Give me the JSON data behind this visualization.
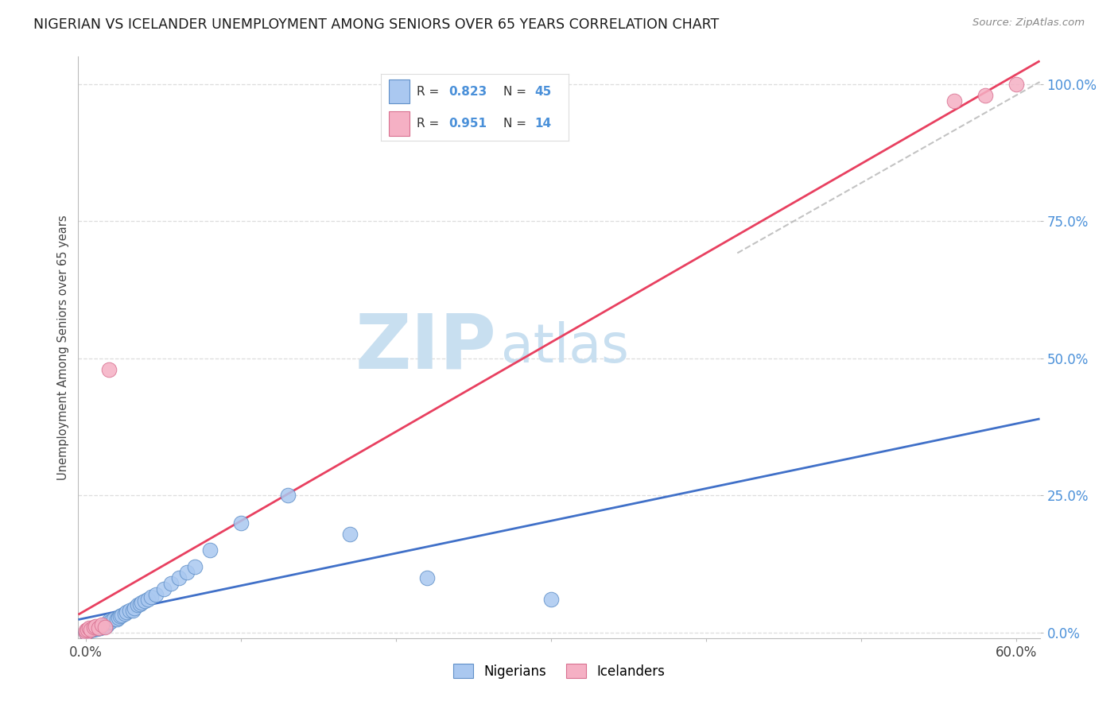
{
  "title": "NIGERIAN VS ICELANDER UNEMPLOYMENT AMONG SENIORS OVER 65 YEARS CORRELATION CHART",
  "source": "Source: ZipAtlas.com",
  "ylabel": "Unemployment Among Seniors over 65 years",
  "xlim": [
    -0.005,
    0.615
  ],
  "ylim": [
    -0.01,
    1.05
  ],
  "xtick_positions": [
    0.0,
    0.1,
    0.2,
    0.3,
    0.4,
    0.5,
    0.6
  ],
  "xtick_labels": [
    "0.0%",
    "",
    "",
    "",
    "",
    "",
    "60.0%"
  ],
  "ytick_positions": [
    0.0,
    0.25,
    0.5,
    0.75,
    1.0
  ],
  "ytick_labels": [
    "0.0%",
    "25.0%",
    "50.0%",
    "75.0%",
    "100.0%"
  ],
  "nigerian_R": 0.823,
  "nigerian_N": 45,
  "icelander_R": 0.951,
  "icelander_N": 14,
  "nigerian_color": "#aac8f0",
  "nigerian_edge": "#6090c8",
  "icelander_color": "#f5b0c4",
  "icelander_edge": "#d87090",
  "trend_nigerian_color": "#4070c8",
  "trend_icelander_color": "#e84060",
  "watermark_zip_color": "#c8dff0",
  "watermark_atlas_color": "#c8dff0",
  "background_color": "#ffffff",
  "nigerian_x": [
    0.0,
    0.0,
    0.001,
    0.002,
    0.003,
    0.005,
    0.006,
    0.007,
    0.008,
    0.009,
    0.01,
    0.011,
    0.012,
    0.013,
    0.015,
    0.015,
    0.016,
    0.018,
    0.02,
    0.021,
    0.022,
    0.023,
    0.025,
    0.026,
    0.028,
    0.03,
    0.031,
    0.033,
    0.035,
    0.036,
    0.038,
    0.04,
    0.042,
    0.045,
    0.05,
    0.055,
    0.06,
    0.065,
    0.07,
    0.08,
    0.1,
    0.13,
    0.17,
    0.22,
    0.3
  ],
  "nigerian_y": [
    0.0,
    0.002,
    0.003,
    0.005,
    0.004,
    0.006,
    0.008,
    0.007,
    0.009,
    0.008,
    0.01,
    0.012,
    0.015,
    0.013,
    0.018,
    0.022,
    0.02,
    0.025,
    0.025,
    0.028,
    0.03,
    0.032,
    0.035,
    0.038,
    0.04,
    0.04,
    0.045,
    0.05,
    0.052,
    0.055,
    0.058,
    0.06,
    0.065,
    0.07,
    0.08,
    0.09,
    0.1,
    0.11,
    0.12,
    0.15,
    0.2,
    0.25,
    0.18,
    0.1,
    0.06
  ],
  "icelander_x": [
    0.0,
    0.0,
    0.001,
    0.002,
    0.003,
    0.005,
    0.006,
    0.008,
    0.01,
    0.012,
    0.015,
    0.56,
    0.58,
    0.6
  ],
  "icelander_y": [
    0.0,
    0.004,
    0.005,
    0.008,
    0.006,
    0.01,
    0.012,
    0.008,
    0.015,
    0.01,
    0.48,
    0.97,
    0.98,
    1.0
  ]
}
